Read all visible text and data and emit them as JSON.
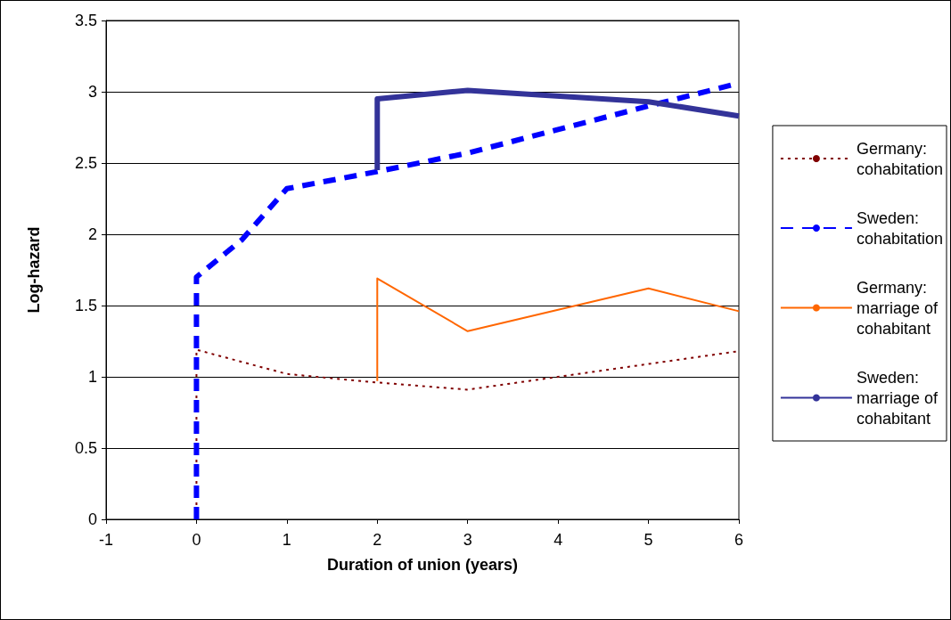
{
  "chart_data": {
    "type": "line",
    "xlabel": "Duration of union (years)",
    "ylabel": "Log-hazard",
    "xlim": [
      -1,
      6
    ],
    "xticks": [
      -1,
      0,
      1,
      2,
      3,
      4,
      5,
      6
    ],
    "ylim": [
      0,
      3.5
    ],
    "yticks": [
      0,
      0.5,
      1,
      1.5,
      2,
      2.5,
      3,
      3.5
    ],
    "grid": "y",
    "legend": "right",
    "marker": "none",
    "series": [
      {
        "name": "Germany: cohabitation",
        "color": "#800000",
        "line_style": "dotted",
        "x": [
          0,
          0,
          1,
          2,
          3,
          5,
          6
        ],
        "values": [
          0,
          1.19,
          1.02,
          0.96,
          0.91,
          1.09,
          1.18
        ]
      },
      {
        "name": "Sweden: cohabitation",
        "color": "#0000ff",
        "line_style": "dashed",
        "x": [
          0,
          0,
          0.5,
          1,
          2,
          3,
          5,
          6
        ],
        "values": [
          0,
          1.7,
          1.96,
          2.32,
          2.44,
          2.57,
          2.9,
          3.06
        ]
      },
      {
        "name": "Germany: marriage of cohabitant",
        "color": "#ff6600",
        "line_style": "solid",
        "x": [
          2,
          2,
          3,
          5,
          6
        ],
        "values": [
          0.97,
          1.69,
          1.32,
          1.62,
          1.46
        ]
      },
      {
        "name": "Sweden: marriage of cohabitant",
        "color": "#333399",
        "line_style": "solid",
        "x": [
          2,
          2,
          3,
          5,
          6
        ],
        "values": [
          2.45,
          2.95,
          3.01,
          2.93,
          2.83
        ]
      }
    ]
  }
}
